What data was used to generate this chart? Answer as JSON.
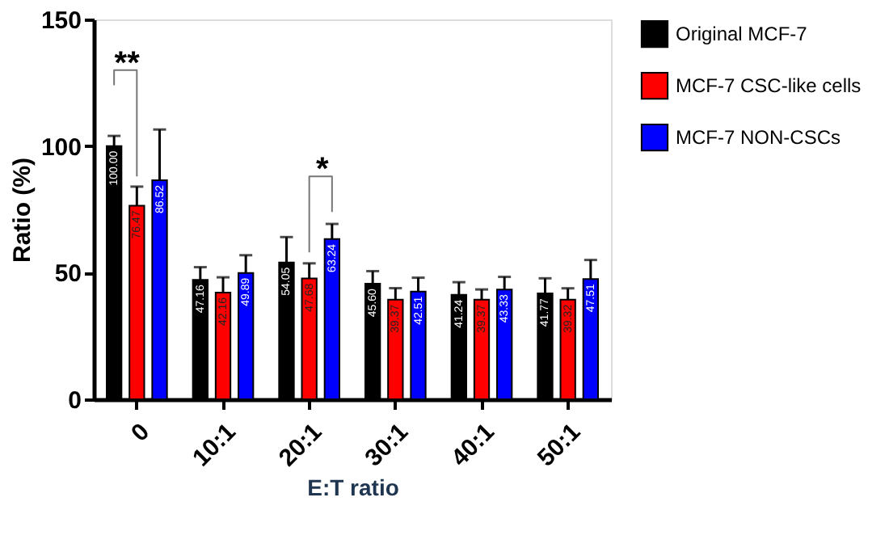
{
  "chart_data": {
    "type": "bar",
    "xlabel": "E:T ratio",
    "ylabel": "Ratio (%)",
    "categories": [
      "0",
      "10:1",
      "20:1",
      "30:1",
      "40:1",
      "50:1"
    ],
    "series": [
      {
        "name": "Original MCF-7",
        "color": "#000000",
        "values": [
          100.0,
          47.16,
          54.05,
          45.6,
          41.24,
          41.77
        ],
        "errors": [
          4,
          5,
          10,
          5,
          5,
          6
        ],
        "value_labels": [
          "100.00",
          "47.16",
          "54.05",
          "45.60",
          "41.24",
          "41.77"
        ]
      },
      {
        "name": "MCF-7 CSC-like cells",
        "color": "#ff0000",
        "values": [
          76.47,
          42.16,
          47.68,
          39.37,
          39.37,
          39.32
        ],
        "errors": [
          7.5,
          6,
          6,
          4.5,
          4,
          4.5
        ],
        "value_labels": [
          "76.47",
          "42.16",
          "47.68",
          "39.37",
          "39.37",
          "39.32"
        ]
      },
      {
        "name": "MCF-7 NON-CSCs",
        "color": "#0000ff",
        "values": [
          86.52,
          49.89,
          63.24,
          42.51,
          43.33,
          47.51
        ],
        "errors": [
          20,
          7,
          6,
          5.5,
          5,
          7.5
        ],
        "value_labels": [
          "86.52",
          "49.89",
          "63.24",
          "42.51",
          "43.33",
          "47.51"
        ]
      }
    ],
    "ylim": [
      0,
      150
    ],
    "yticks": [
      0,
      50,
      100,
      150
    ],
    "grid": false,
    "legend": "top right",
    "annotations": [
      "**",
      "*"
    ]
  }
}
